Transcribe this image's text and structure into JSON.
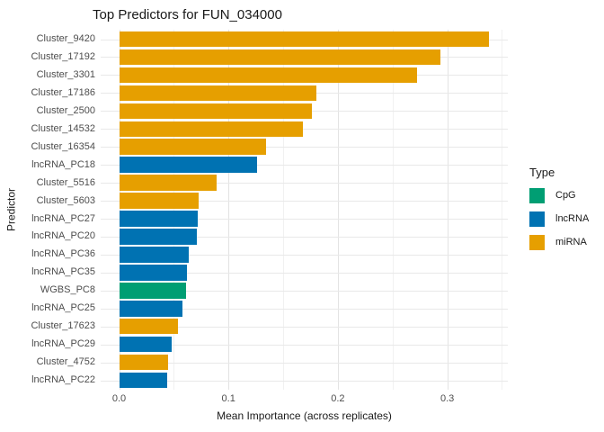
{
  "title": "Top Predictors for FUN_034000",
  "axes": {
    "x_label": "Mean Importance (across replicates)",
    "y_label": "Predictor",
    "x_tick_labels": [
      "0.0",
      "0.1",
      "0.2",
      "0.3"
    ]
  },
  "legend": {
    "title": "Type",
    "items": [
      {
        "label": "CpG",
        "color": "#009E73"
      },
      {
        "label": "lncRNA",
        "color": "#0072B2"
      },
      {
        "label": "miRNA",
        "color": "#E69F00"
      }
    ]
  },
  "chart_data": {
    "type": "bar",
    "orientation": "horizontal",
    "title": "Top Predictors for FUN_034000",
    "xlabel": "Mean Importance (across replicates)",
    "ylabel": "Predictor",
    "xlim": [
      0,
      0.355
    ],
    "x_tick_values": [
      0.0,
      0.1,
      0.2,
      0.3
    ],
    "x_minor_gridlines": [
      0.05,
      0.15,
      0.25,
      0.35
    ],
    "grid": true,
    "legend_position": "right",
    "sort": "descending",
    "categories": [
      "Cluster_9420",
      "Cluster_17192",
      "Cluster_3301",
      "Cluster_17186",
      "Cluster_2500",
      "Cluster_14532",
      "Cluster_16354",
      "lncRNA_PC18",
      "Cluster_5516",
      "Cluster_5603",
      "lncRNA_PC27",
      "lncRNA_PC20",
      "lncRNA_PC36",
      "lncRNA_PC35",
      "WGBS_PC8",
      "lncRNA_PC25",
      "Cluster_17623",
      "lncRNA_PC29",
      "Cluster_4752",
      "lncRNA_PC22"
    ],
    "values": [
      0.338,
      0.294,
      0.272,
      0.18,
      0.176,
      0.168,
      0.134,
      0.126,
      0.089,
      0.073,
      0.072,
      0.071,
      0.064,
      0.062,
      0.061,
      0.058,
      0.054,
      0.048,
      0.045,
      0.044
    ],
    "series_types": [
      "miRNA",
      "miRNA",
      "miRNA",
      "miRNA",
      "miRNA",
      "miRNA",
      "miRNA",
      "lncRNA",
      "miRNA",
      "miRNA",
      "lncRNA",
      "lncRNA",
      "lncRNA",
      "lncRNA",
      "CpG",
      "lncRNA",
      "miRNA",
      "lncRNA",
      "miRNA",
      "lncRNA"
    ],
    "type_colors": {
      "CpG": "#009E73",
      "lncRNA": "#0072B2",
      "miRNA": "#E69F00"
    }
  }
}
